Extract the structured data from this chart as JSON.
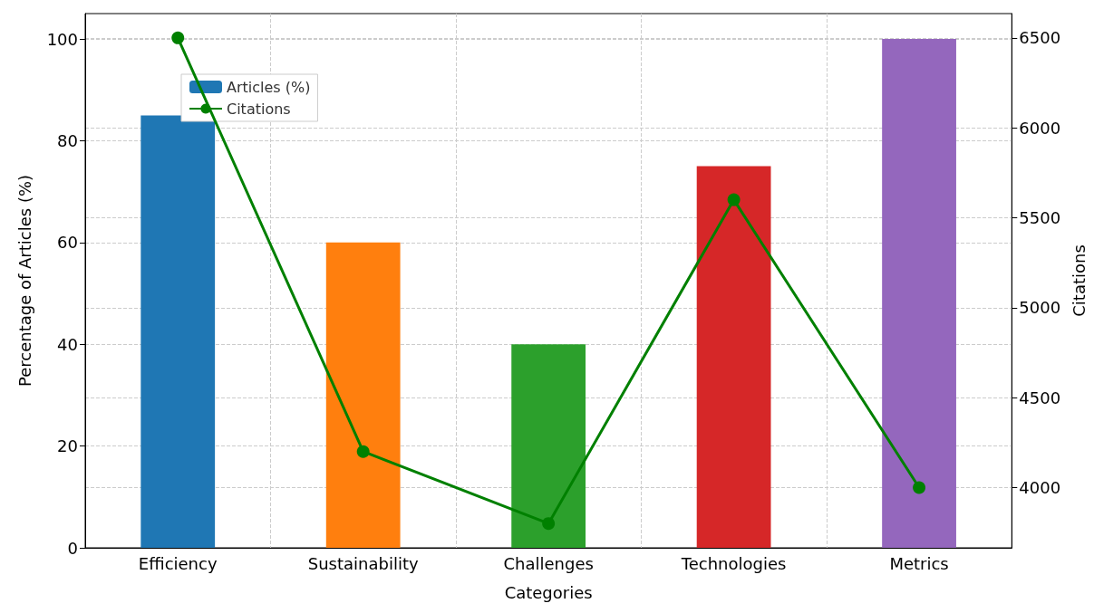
{
  "chart_data": {
    "type": "bar",
    "xlabel": "Categories",
    "ylabel": "Percentage of Articles (%)",
    "y2label": "Citations",
    "categories": [
      "Efficiency",
      "Sustainability",
      "Challenges",
      "Technologies",
      "Metrics"
    ],
    "series": [
      {
        "name": "Articles (%)",
        "values": [
          85,
          60,
          40,
          75,
          100
        ],
        "colors": [
          "#1f77b4",
          "#ff7f0e",
          "#2ca02c",
          "#d62728",
          "#9467bd"
        ],
        "color": "#1f77b4"
      },
      {
        "name": "Citations",
        "type": "line",
        "axis": "y2",
        "color": "#008000",
        "values": [
          6500,
          4200,
          3800,
          5600,
          4000
        ]
      }
    ],
    "ylim": [
      0,
      105
    ],
    "yticks": [
      0,
      20,
      40,
      60,
      80,
      100
    ],
    "y2lim": [
      3665,
      6635
    ],
    "y2ticks": [
      4000,
      4500,
      5000,
      5500,
      6000,
      6500
    ],
    "grid": true,
    "legend": "top left",
    "marker": "circle",
    "line_style": "solid"
  }
}
